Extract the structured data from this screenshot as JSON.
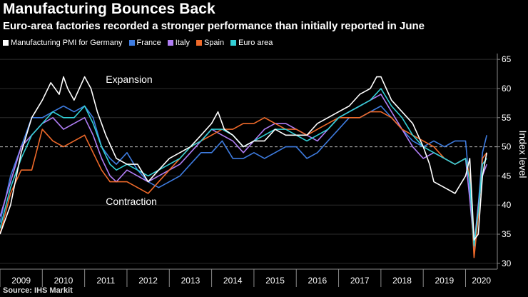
{
  "chart_data": {
    "type": "line",
    "title": "Manufacturing Bounces Back",
    "subtitle": "Euro-area factories recorded a stronger performance than initially reported in June",
    "ylabel": "Index level",
    "ylim": [
      29,
      66
    ],
    "yticks": [
      30,
      35,
      40,
      45,
      50,
      55,
      60,
      65
    ],
    "xlim": [
      2009.0,
      2020.75
    ],
    "years": [
      "2009",
      "2010",
      "2011",
      "2012",
      "2013",
      "2014",
      "2015",
      "2016",
      "2017",
      "2018",
      "2019",
      "2020"
    ],
    "reference_line": 50,
    "annotations": [
      {
        "text": "Expansion",
        "x": 2011.5,
        "y": 61
      },
      {
        "text": "Contraction",
        "x": 2011.5,
        "y": 40
      }
    ],
    "source": "Source: IHS Markit",
    "series": [
      {
        "name": "Manufacturing PMI for Germany",
        "color": "#ffffff",
        "x": [
          2009.0,
          2009.25,
          2009.5,
          2009.75,
          2010.0,
          2010.2,
          2010.4,
          2010.5,
          2010.6,
          2010.75,
          2011.0,
          2011.15,
          2011.3,
          2011.5,
          2011.75,
          2012.0,
          2012.25,
          2012.5,
          2012.75,
          2013.0,
          2013.25,
          2013.5,
          2013.75,
          2014.0,
          2014.15,
          2014.3,
          2014.5,
          2014.75,
          2015.0,
          2015.25,
          2015.5,
          2015.75,
          2016.0,
          2016.25,
          2016.5,
          2016.75,
          2017.0,
          2017.25,
          2017.5,
          2017.75,
          2017.9,
          2018.0,
          2018.25,
          2018.5,
          2018.75,
          2019.0,
          2019.15,
          2019.25,
          2019.5,
          2019.75,
          2020.0,
          2020.1,
          2020.2,
          2020.3,
          2020.4,
          2020.5
        ],
        "y": [
          35,
          40,
          49,
          55,
          58,
          61,
          59,
          62,
          60,
          58,
          62,
          60,
          56,
          52,
          48,
          47,
          47,
          44,
          46,
          48,
          49,
          50,
          52,
          54,
          56,
          53,
          52,
          50,
          51,
          51,
          53,
          52,
          52,
          52,
          54,
          55,
          56,
          57,
          59,
          60,
          62,
          62,
          58,
          56,
          54,
          50,
          47,
          44,
          43,
          42,
          45,
          48,
          34,
          35,
          45,
          49
        ]
      },
      {
        "name": "France",
        "color": "#3e7ce0",
        "x": [
          2009.0,
          2009.25,
          2009.5,
          2009.75,
          2010.0,
          2010.25,
          2010.5,
          2010.75,
          2011.0,
          2011.2,
          2011.4,
          2011.6,
          2011.75,
          2012.0,
          2012.25,
          2012.5,
          2012.75,
          2013.0,
          2013.25,
          2013.5,
          2013.75,
          2014.0,
          2014.25,
          2014.5,
          2014.75,
          2015.0,
          2015.25,
          2015.5,
          2015.75,
          2016.0,
          2016.25,
          2016.5,
          2016.75,
          2017.0,
          2017.25,
          2017.5,
          2017.75,
          2018.0,
          2018.25,
          2018.5,
          2018.75,
          2019.0,
          2019.25,
          2019.5,
          2019.75,
          2020.0,
          2020.1,
          2020.2,
          2020.3,
          2020.4,
          2020.5
        ],
        "y": [
          37,
          45,
          50,
          55,
          55,
          56,
          57,
          56,
          57,
          55,
          50,
          48,
          47,
          49,
          46,
          44,
          43,
          44,
          45,
          47,
          49,
          49,
          51,
          48,
          48,
          49,
          48,
          49,
          50,
          50,
          48,
          49,
          51,
          53,
          55,
          55,
          56,
          57,
          55,
          53,
          51,
          50,
          51,
          50,
          51,
          51,
          43,
          32,
          40,
          49,
          52
        ]
      },
      {
        "name": "Italy",
        "color": "#b07ef5",
        "x": [
          2009.0,
          2009.25,
          2009.5,
          2009.75,
          2010.0,
          2010.25,
          2010.5,
          2010.75,
          2011.0,
          2011.2,
          2011.4,
          2011.6,
          2011.75,
          2012.0,
          2012.25,
          2012.5,
          2012.75,
          2013.0,
          2013.25,
          2013.5,
          2013.75,
          2014.0,
          2014.25,
          2014.5,
          2014.75,
          2015.0,
          2015.25,
          2015.5,
          2015.75,
          2016.0,
          2016.25,
          2016.5,
          2016.75,
          2017.0,
          2017.25,
          2017.5,
          2017.75,
          2018.0,
          2018.25,
          2018.5,
          2018.75,
          2019.0,
          2019.25,
          2019.5,
          2019.75,
          2020.0,
          2020.1,
          2020.2,
          2020.3,
          2020.4,
          2020.5
        ],
        "y": [
          38,
          44,
          50,
          52,
          54,
          55,
          53,
          54,
          55,
          52,
          48,
          45,
          44,
          46,
          45,
          44,
          45,
          46,
          47,
          49,
          51,
          53,
          52,
          51,
          49,
          51,
          53,
          54,
          54,
          53,
          52,
          51,
          53,
          55,
          56,
          57,
          58,
          59,
          56,
          53,
          50,
          48,
          49,
          48,
          47,
          48,
          41,
          33,
          40,
          45,
          47
        ]
      },
      {
        "name": "Spain",
        "color": "#f06a2a",
        "x": [
          2009.0,
          2009.25,
          2009.5,
          2009.75,
          2010.0,
          2010.25,
          2010.5,
          2010.75,
          2011.0,
          2011.2,
          2011.4,
          2011.6,
          2011.75,
          2012.0,
          2012.25,
          2012.5,
          2012.75,
          2013.0,
          2013.25,
          2013.5,
          2013.75,
          2014.0,
          2014.25,
          2014.5,
          2014.75,
          2015.0,
          2015.25,
          2015.5,
          2015.75,
          2016.0,
          2016.25,
          2016.5,
          2016.75,
          2017.0,
          2017.25,
          2017.5,
          2017.75,
          2018.0,
          2018.25,
          2018.5,
          2018.75,
          2019.0,
          2019.25,
          2019.5,
          2019.75,
          2020.0,
          2020.1,
          2020.2,
          2020.3,
          2020.4,
          2020.5
        ],
        "y": [
          35,
          42,
          46,
          46,
          53,
          51,
          50,
          51,
          52,
          49,
          46,
          44,
          44,
          44,
          43,
          42,
          44,
          46,
          48,
          50,
          51,
          52,
          53,
          53,
          54,
          54,
          55,
          54,
          53,
          53,
          52,
          53,
          54,
          55,
          55,
          55,
          56,
          56,
          55,
          53,
          52,
          51,
          50,
          48,
          47,
          48,
          45,
          31,
          38,
          48,
          49
        ]
      },
      {
        "name": "Euro area",
        "color": "#33d0d6",
        "x": [
          2009.0,
          2009.25,
          2009.5,
          2009.75,
          2010.0,
          2010.25,
          2010.5,
          2010.75,
          2011.0,
          2011.2,
          2011.4,
          2011.6,
          2011.75,
          2012.0,
          2012.25,
          2012.5,
          2012.75,
          2013.0,
          2013.25,
          2013.5,
          2013.75,
          2014.0,
          2014.25,
          2014.5,
          2014.75,
          2015.0,
          2015.25,
          2015.5,
          2015.75,
          2016.0,
          2016.25,
          2016.5,
          2016.75,
          2017.0,
          2017.25,
          2017.5,
          2017.75,
          2018.0,
          2018.25,
          2018.5,
          2018.75,
          2019.0,
          2019.25,
          2019.5,
          2019.75,
          2020.0,
          2020.1,
          2020.2,
          2020.3,
          2020.4,
          2020.5
        ],
        "y": [
          36,
          43,
          48,
          52,
          54,
          56,
          55,
          55,
          57,
          54,
          50,
          47,
          46,
          47,
          46,
          45,
          46,
          47,
          48,
          50,
          51,
          53,
          53,
          52,
          50,
          51,
          52,
          53,
          53,
          52,
          51,
          52,
          53,
          55,
          56,
          57,
          58,
          60,
          57,
          55,
          52,
          50,
          49,
          48,
          47,
          48,
          44,
          33,
          39,
          47,
          48
        ]
      }
    ]
  }
}
